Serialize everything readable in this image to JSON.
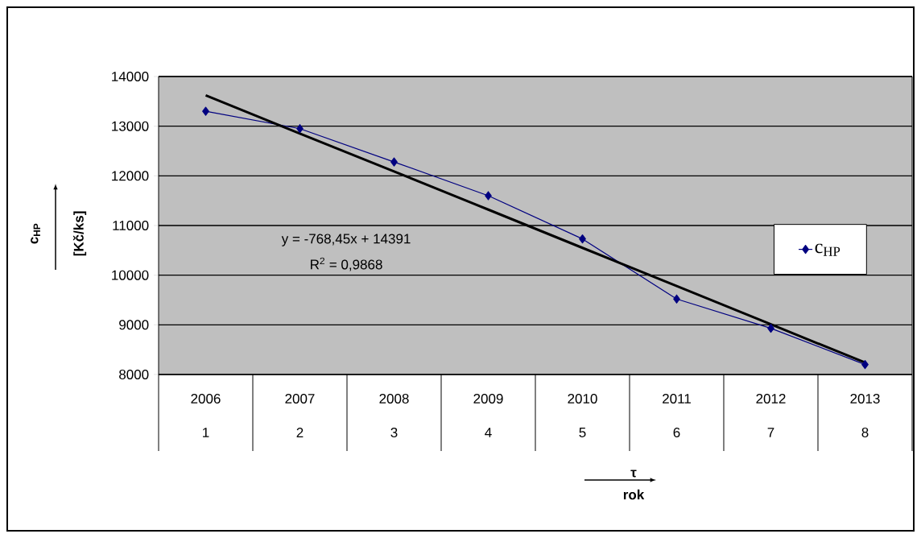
{
  "chart_data": {
    "type": "line",
    "categories": [
      "2006",
      "2007",
      "2008",
      "2009",
      "2010",
      "2011",
      "2012",
      "2013"
    ],
    "series": [
      {
        "name": "c$_{HP}$",
        "color": "#000080",
        "values": [
          13300,
          12950,
          12280,
          11600,
          10730,
          9520,
          8930,
          8200
        ],
        "marker": "diamond"
      },
      {
        "type": "line",
        "color": "#000000",
        "values": [
          13620,
          12850,
          12090,
          11320,
          10550,
          9780,
          9010,
          8240
        ],
        "marker": "none"
      }
    ],
    "ylabel": "[Kč/ks]",
    "xlabel": "τ",
    "annotations": [
      "1",
      "2",
      "3",
      "4",
      "5",
      "6",
      "7",
      "8",
      "y = -768,45x + 14391",
      "R$^{2}$ = 0,9868",
      "c$_{HP}$",
      "rok"
    ],
    "ylim": [
      8000,
      14000
    ],
    "yticks": [
      8000,
      9000,
      10000,
      11000,
      12000,
      13000,
      14000
    ],
    "grid": "y",
    "legend": "right",
    "line_style": "solid"
  }
}
